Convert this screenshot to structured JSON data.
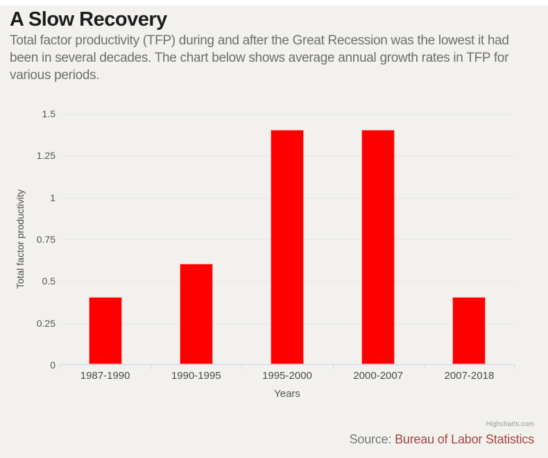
{
  "page": {
    "title": "A Slow Recovery",
    "subtitle": "Total factor productivity (TFP) during and after the Great Recession was the lowest it had been in several decades. The chart below shows average annual growth rates in TFP for various periods.",
    "credit": "Highcharts.com",
    "source_label": "Source:",
    "source_link_text": "Bureau of Labor Statistics"
  },
  "colors": {
    "bar": "#ff0000",
    "bar_border": "#ffaaaa",
    "panel_background": "#f2f1ee",
    "page_background": "#ffffff",
    "gridline": "#e6e6e6",
    "axis_line": "#ccd6eb",
    "title_text": "#1c1c1c",
    "subtitle_text": "#6e6e6e",
    "tick_text": "#555555",
    "source_label_text": "#777777",
    "source_link_color": "#a94442",
    "credit_text": "#999999"
  },
  "chart_data": {
    "type": "bar",
    "title": "",
    "categories": [
      "1987-1990",
      "1990-1995",
      "1995-2000",
      "2000-2007",
      "2007-2018"
    ],
    "values": [
      0.4,
      0.6,
      1.4,
      1.4,
      0.4
    ],
    "xlabel": "Years",
    "ylabel": "Total factor productivity",
    "ylim": [
      0,
      1.5
    ],
    "yticks": [
      0,
      0.25,
      0.5,
      0.75,
      1,
      1.25,
      1.5
    ],
    "ytick_labels": [
      "0",
      "0.25",
      "0.5",
      "0.75",
      "1",
      "1.25",
      "1.5"
    ],
    "grid": "horizontal",
    "legend_position": "none",
    "series_color": "#ff0000"
  }
}
